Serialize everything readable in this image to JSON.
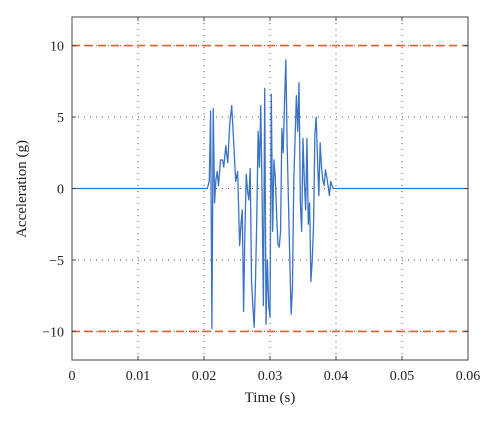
{
  "chart_data": {
    "type": "line",
    "title": "",
    "xlabel": "Time (s)",
    "ylabel": "Acceleration (g)",
    "xlim": [
      0,
      0.06
    ],
    "ylim": [
      -12,
      12
    ],
    "grid": true,
    "x_ticks": [
      0,
      0.01,
      0.02,
      0.03,
      0.04,
      0.05,
      0.06
    ],
    "x_tick_labels": [
      "0",
      "0.01",
      "0.02",
      "0.03",
      "0.04",
      "0.05",
      "0.06"
    ],
    "y_ticks": [
      10,
      5,
      0,
      -5,
      -10
    ],
    "y_tick_labels": [
      "10",
      "5",
      "0",
      "−5",
      "−10"
    ],
    "series": [
      {
        "color": "#3a72c4",
        "style": "solid",
        "x": [
          0,
          0.0205,
          0.0208,
          0.021,
          0.0212,
          0.0214,
          0.0216,
          0.0218,
          0.022,
          0.0222,
          0.0225,
          0.0228,
          0.023,
          0.0233,
          0.0236,
          0.0239,
          0.0242,
          0.0245,
          0.0248,
          0.0251,
          0.0254,
          0.0256,
          0.0258,
          0.026,
          0.0262,
          0.0264,
          0.0266,
          0.0268,
          0.027,
          0.0272,
          0.0274,
          0.0276,
          0.0278,
          0.028,
          0.0282,
          0.0284,
          0.0286,
          0.0288,
          0.029,
          0.0292,
          0.0294,
          0.0296,
          0.0298,
          0.03,
          0.0302,
          0.0304,
          0.0306,
          0.0308,
          0.031,
          0.0312,
          0.0314,
          0.0316,
          0.0318,
          0.032,
          0.0322,
          0.0324,
          0.0326,
          0.0328,
          0.033,
          0.0332,
          0.0334,
          0.0336,
          0.0338,
          0.034,
          0.0342,
          0.0344,
          0.0346,
          0.0348,
          0.035,
          0.0352,
          0.0354,
          0.0356,
          0.0358,
          0.036,
          0.0362,
          0.0364,
          0.0366,
          0.0368,
          0.037,
          0.0372,
          0.0374,
          0.0376,
          0.0378,
          0.038,
          0.0382,
          0.0384,
          0.0386,
          0.0388,
          0.039,
          0.0392,
          0.0394,
          0.0396,
          0.04,
          0.06
        ],
        "y": [
          0,
          0,
          0.5,
          5.4,
          -9.8,
          5.6,
          -1.0,
          0.6,
          1.2,
          0.2,
          2.0,
          2.0,
          1.5,
          3.0,
          1.8,
          4.5,
          5.8,
          3.2,
          0.5,
          1.2,
          -4.0,
          -2.5,
          -1.5,
          -8.6,
          -3.0,
          1.0,
          -0.2,
          -0.8,
          1.4,
          -6.5,
          -8.2,
          -9.7,
          -6.5,
          -2.0,
          4.0,
          1.5,
          5.8,
          -0.5,
          -8.2,
          7.0,
          -9.5,
          -5.0,
          -8.2,
          -9.0,
          6.6,
          -3.0,
          2.0,
          0.8,
          -1.8,
          -3.9,
          -4.1,
          -3.0,
          4.2,
          2.5,
          6.0,
          9.0,
          3.0,
          -1.0,
          -5.0,
          -8.8,
          -7.0,
          0.5,
          3.5,
          6.5,
          4.0,
          7.4,
          -1.0,
          -3.0,
          3.5,
          0.5,
          -1.5,
          3.5,
          -2.5,
          -1.0,
          -6.5,
          -5.0,
          -2.5,
          3.8,
          5.0,
          2.0,
          -0.5,
          3.2,
          1.5,
          0.6,
          0.2,
          1.3,
          0.8,
          0.2,
          -0.5,
          0.5,
          0.2,
          0,
          0,
          0
        ]
      },
      {
        "color": "#d9622e",
        "style": "dashed",
        "x": [
          0,
          0.06
        ],
        "y": [
          10,
          10
        ]
      },
      {
        "color": "#d9622e",
        "style": "dashed",
        "x": [
          0,
          0.06
        ],
        "y": [
          -10,
          -10
        ]
      }
    ]
  }
}
